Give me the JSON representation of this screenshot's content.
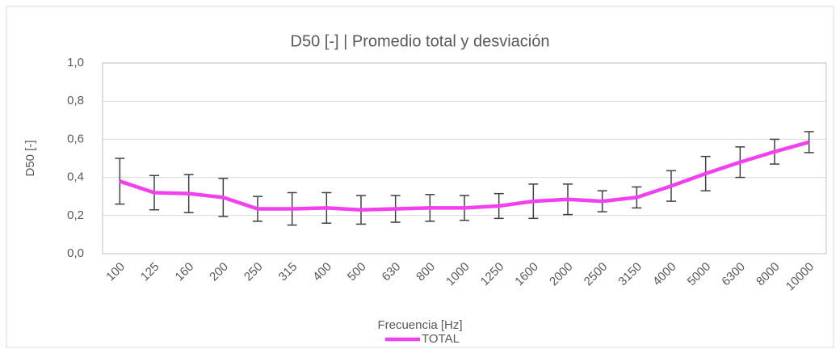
{
  "chart_data": {
    "type": "line",
    "title": "D50 [-] | Promedio total y desviación",
    "x_label": "Frecuencia [Hz]",
    "y_label": "D50 [-]",
    "categories": [
      "100",
      "125",
      "160",
      "200",
      "250",
      "315",
      "400",
      "500",
      "630",
      "800",
      "1000",
      "1250",
      "1600",
      "2000",
      "2500",
      "3150",
      "4000",
      "5000",
      "6300",
      "8000",
      "10000"
    ],
    "series": [
      {
        "name": "TOTAL",
        "color": "#f23ff0",
        "values": [
          0.38,
          0.32,
          0.315,
          0.295,
          0.235,
          0.235,
          0.24,
          0.23,
          0.235,
          0.24,
          0.24,
          0.25,
          0.275,
          0.285,
          0.275,
          0.295,
          0.355,
          0.42,
          0.48,
          0.535,
          0.585
        ],
        "errors": [
          0.12,
          0.09,
          0.1,
          0.1,
          0.065,
          0.085,
          0.08,
          0.075,
          0.07,
          0.07,
          0.065,
          0.065,
          0.09,
          0.08,
          0.055,
          0.055,
          0.08,
          0.09,
          0.08,
          0.065,
          0.055
        ]
      }
    ],
    "ylim": [
      0,
      1
    ],
    "yticks": [
      {
        "value": 0,
        "label": "0,0"
      },
      {
        "value": 0.2,
        "label": "0,2"
      },
      {
        "value": 0.4,
        "label": "0,4"
      },
      {
        "value": 0.6,
        "label": "0,6"
      },
      {
        "value": 0.8,
        "label": "0,8"
      },
      {
        "value": 1,
        "label": "1,0"
      }
    ],
    "grid": true,
    "error_bar_color": "#404040",
    "legend": "bottom"
  }
}
